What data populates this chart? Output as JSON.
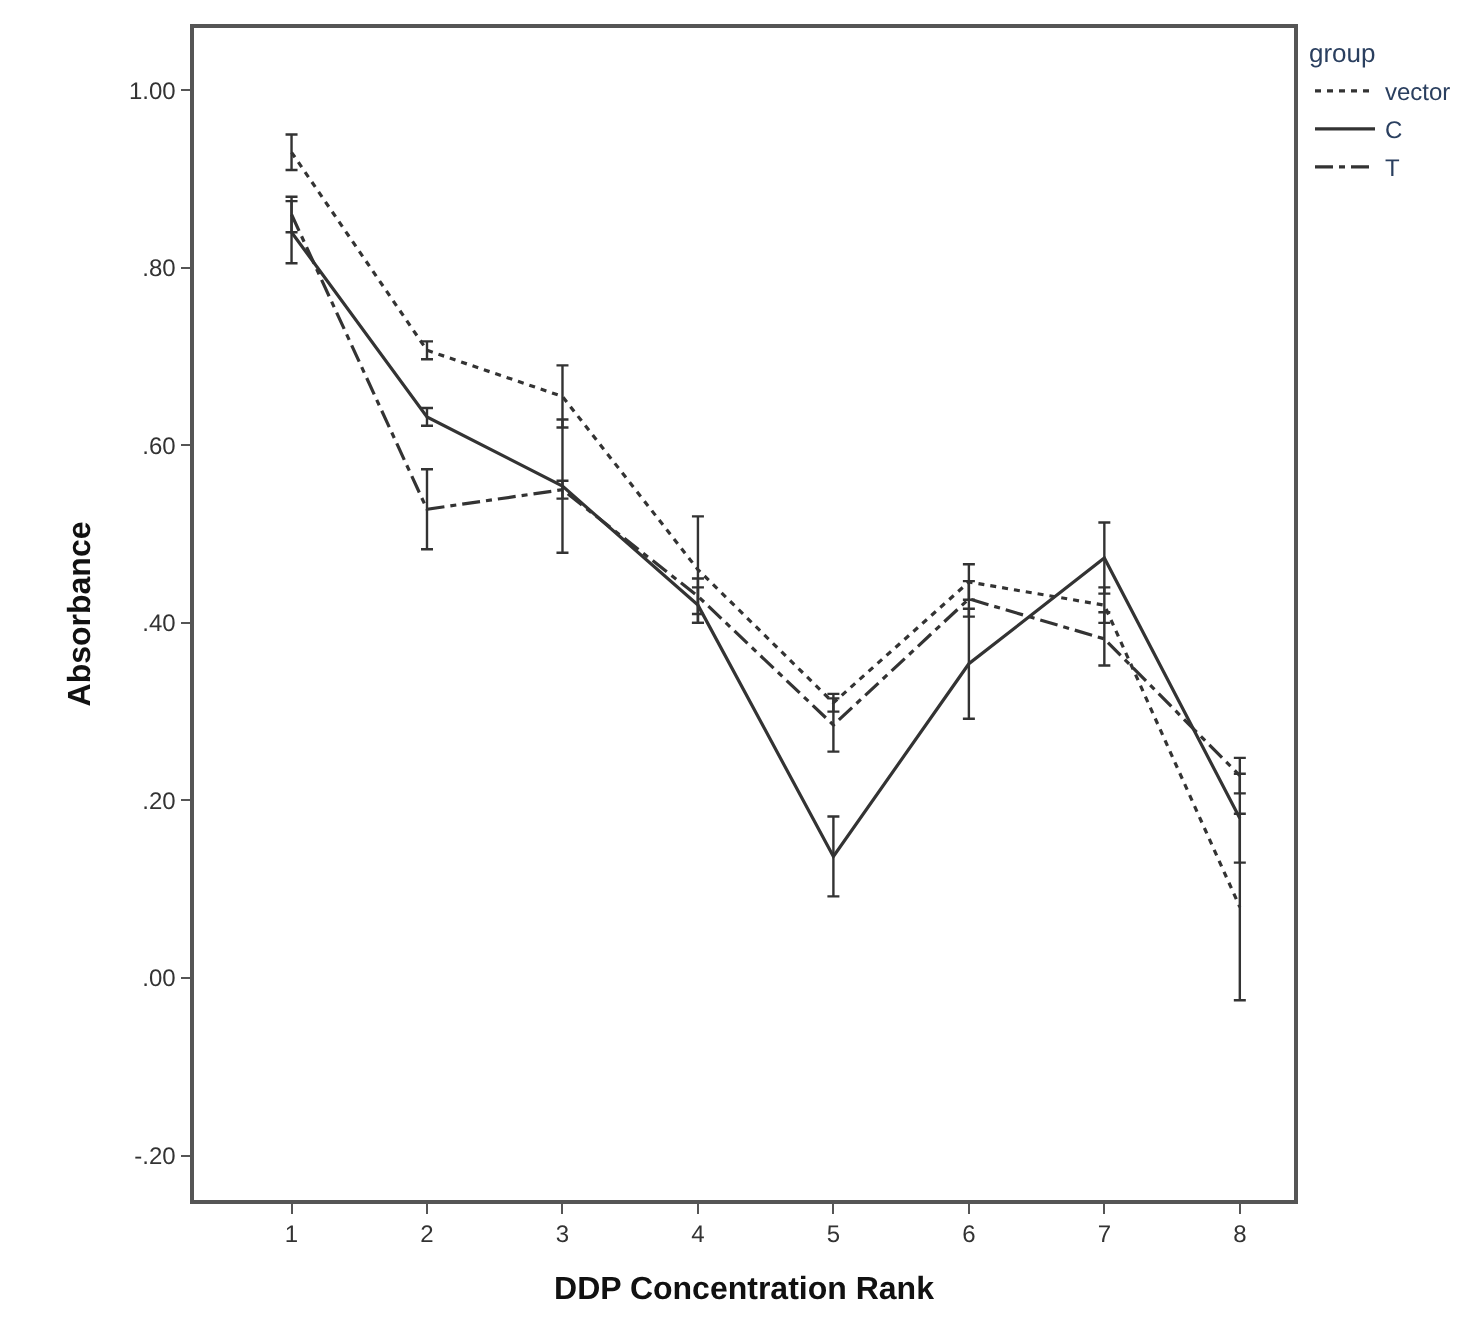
{
  "chart_data": {
    "type": "line",
    "xlabel": "DDP Concentration Rank",
    "ylabel": "Absorbance",
    "legend_title": "group",
    "legend": "top right",
    "marker": "none",
    "x": [
      1,
      2,
      3,
      4,
      5,
      6,
      7,
      8
    ],
    "xlim": [
      0.28,
      8.4
    ],
    "xticks": [
      1,
      2,
      3,
      4,
      5,
      6,
      7,
      8
    ],
    "ylim": [
      -0.25,
      1.07
    ],
    "yticks": [
      {
        "value": -0.2,
        "label": "-.20"
      },
      {
        "value": 0,
        "label": ".00"
      },
      {
        "value": 0.2,
        "label": ".20"
      },
      {
        "value": 0.4,
        "label": ".40"
      },
      {
        "value": 0.6,
        "label": ".60"
      },
      {
        "value": 0.8,
        "label": ".80"
      },
      {
        "value": 1.0,
        "label": "1.00"
      }
    ],
    "series": [
      {
        "name": "vector",
        "color": "#333333",
        "line_style": "dotted",
        "values": [
          0.93,
          0.707,
          0.655,
          0.46,
          0.31,
          0.446,
          0.42,
          0.08
        ],
        "errors": [
          0.02,
          0.01,
          0.035,
          0.06,
          0.01,
          0.02,
          0.02,
          0.105
        ]
      },
      {
        "name": "C",
        "color": "#333333",
        "line_style": "solid",
        "values": [
          0.84,
          0.632,
          0.554,
          0.42,
          0.137,
          0.354,
          0.473,
          0.18
        ],
        "errors": [
          0.035,
          0.01,
          0.075,
          0.02,
          0.045,
          0.062,
          0.04,
          0.05
        ]
      },
      {
        "name": "T",
        "color": "#333333",
        "line_style": "dashdot",
        "values": [
          0.86,
          0.528,
          0.55,
          0.43,
          0.285,
          0.427,
          0.382,
          0.228
        ],
        "errors": [
          0.02,
          0.045,
          0.01,
          0.02,
          0.03,
          0.02,
          0.03,
          0.02
        ]
      }
    ]
  }
}
